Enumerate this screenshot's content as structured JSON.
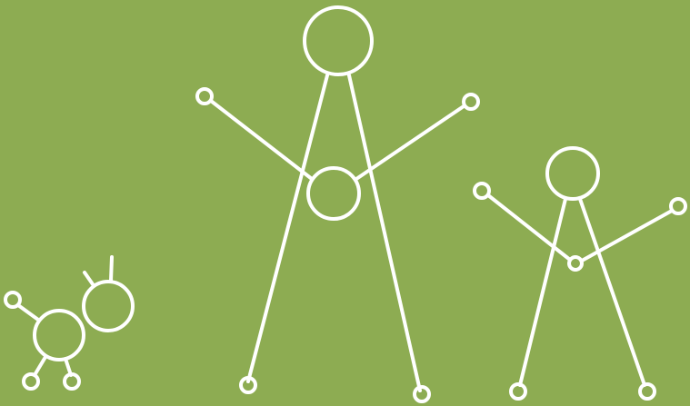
{
  "colors": {
    "background": "#8dac52",
    "stroke": "#ffffff"
  },
  "figures": [
    {
      "name": "large-stick-figure"
    },
    {
      "name": "medium-stick-figure"
    },
    {
      "name": "small-creature-figure"
    }
  ]
}
